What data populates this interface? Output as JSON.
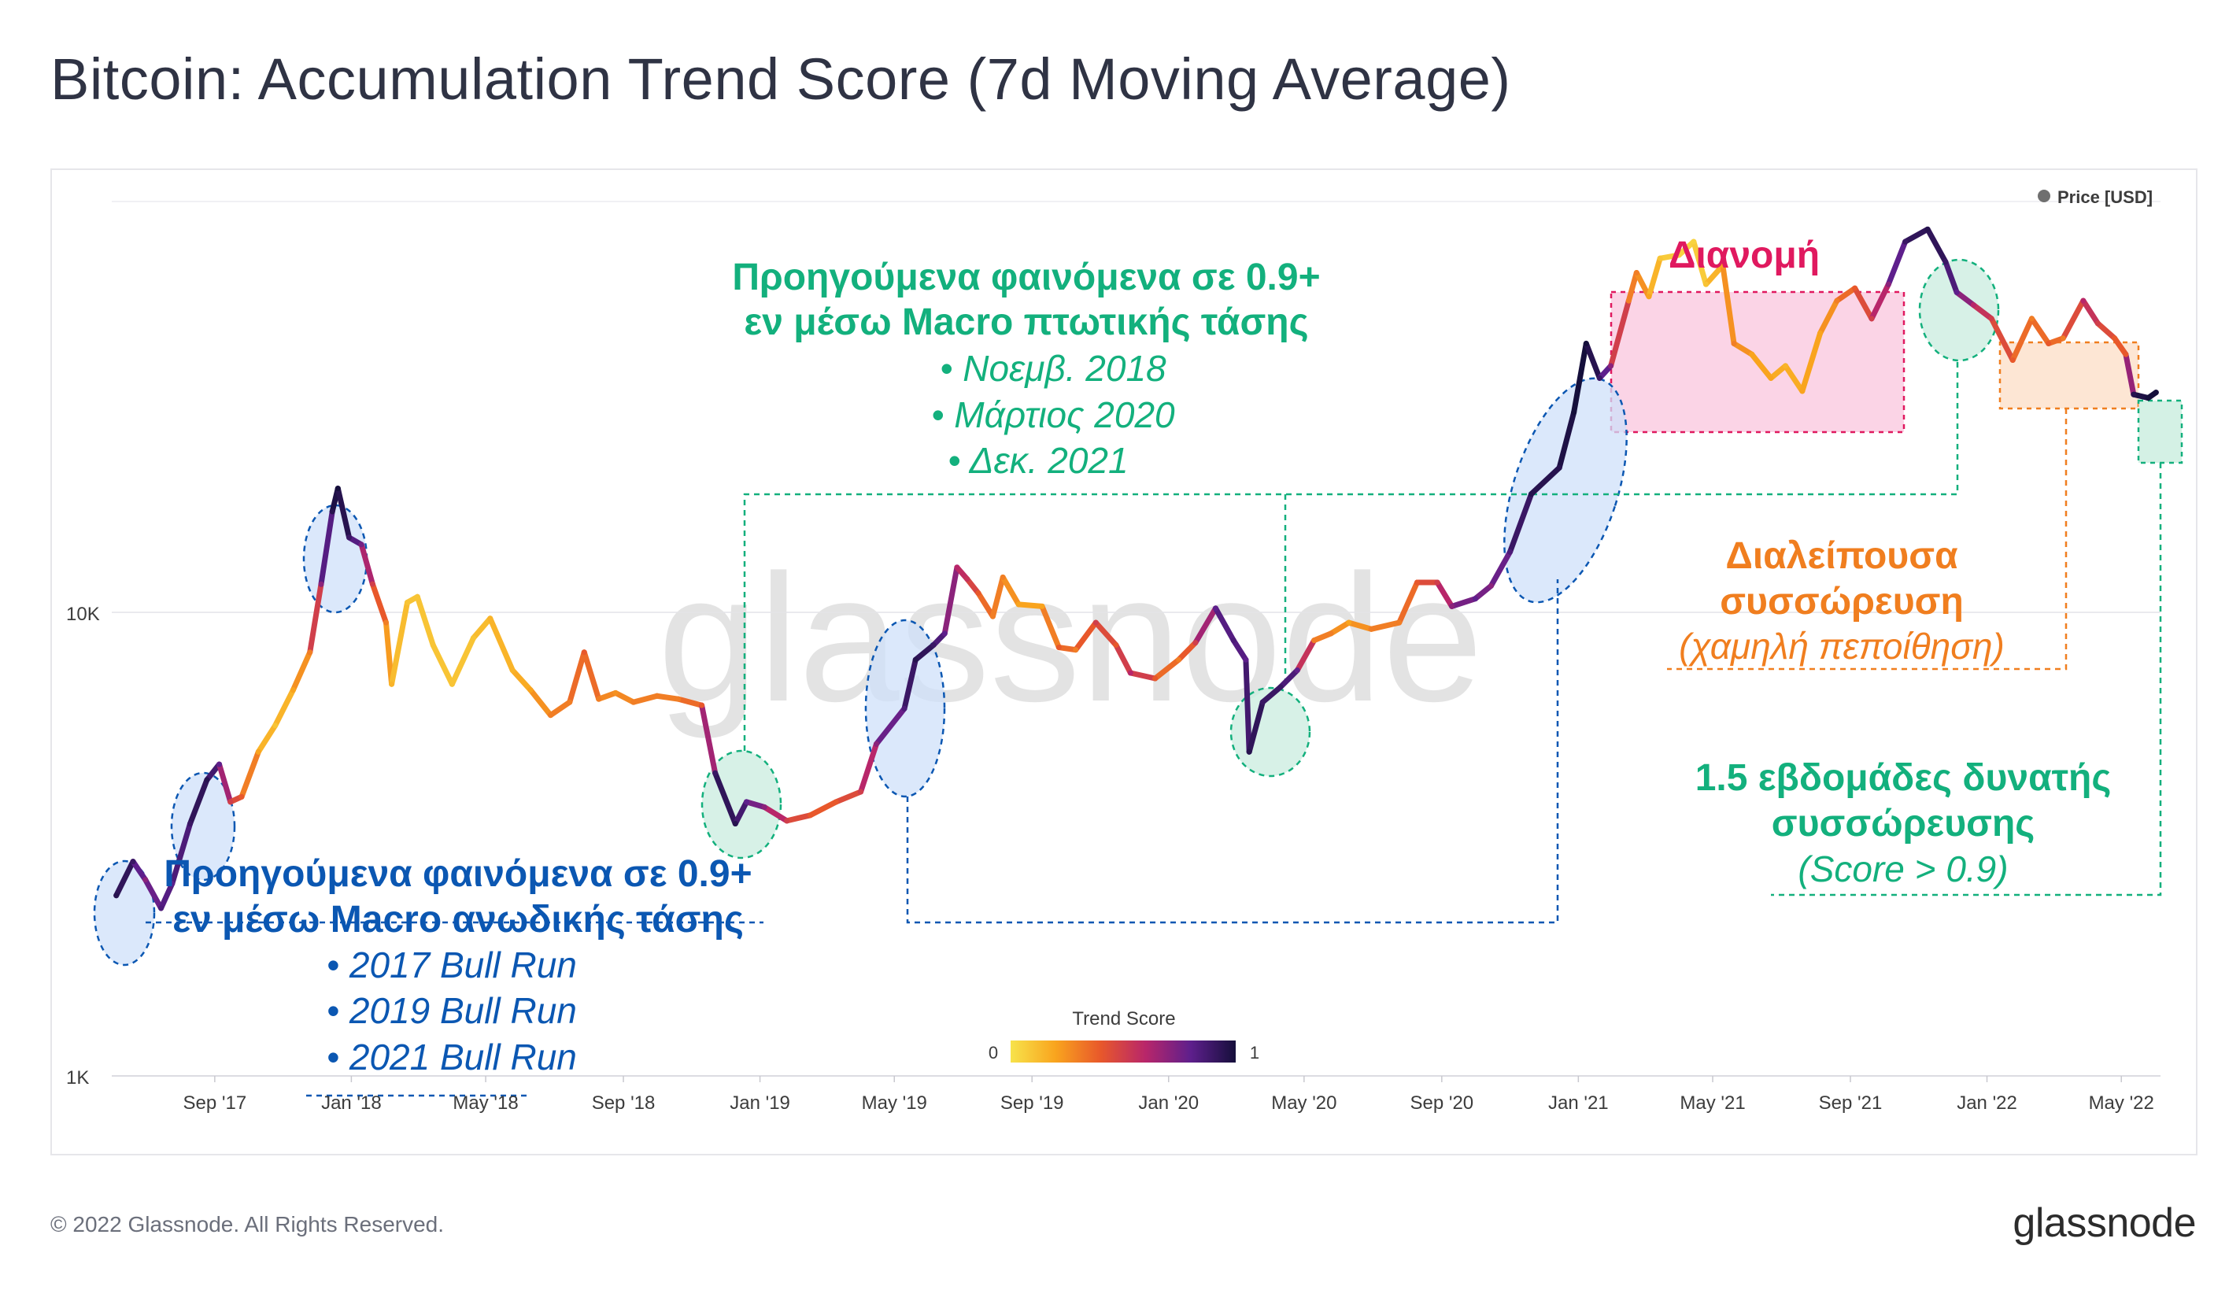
{
  "title": "Bitcoin: Accumulation Trend Score (7d Moving Average)",
  "footer": "© 2022 Glassnode. All Rights Reserved.",
  "brand": "glassnode",
  "watermark": "glassnode",
  "colors": {
    "green": "#13b07d",
    "blue": "#0b57b2",
    "orange": "#f07e1f",
    "pink": "#e0195f",
    "text": "#2f3344"
  },
  "chart_data": {
    "type": "line",
    "y_scale": "log",
    "legend": {
      "label": "Price [USD]",
      "position": "top-right"
    },
    "y_ticks": [
      {
        "value": 1000,
        "label": "1K"
      },
      {
        "value": 10000,
        "label": "10K"
      }
    ],
    "ylim": [
      1000,
      80000
    ],
    "x_range": [
      "2017-06-01",
      "2022-06-05"
    ],
    "x_ticks": [
      {
        "date": "2017-09-01",
        "label": "Sep '17"
      },
      {
        "date": "2018-01-01",
        "label": "Jan '18"
      },
      {
        "date": "2018-05-01",
        "label": "May '18"
      },
      {
        "date": "2018-09-01",
        "label": "Sep '18"
      },
      {
        "date": "2019-01-01",
        "label": "Jan '19"
      },
      {
        "date": "2019-05-01",
        "label": "May '19"
      },
      {
        "date": "2019-09-01",
        "label": "Sep '19"
      },
      {
        "date": "2020-01-01",
        "label": "Jan '20"
      },
      {
        "date": "2020-05-01",
        "label": "May '20"
      },
      {
        "date": "2020-09-01",
        "label": "Sep '20"
      },
      {
        "date": "2021-01-01",
        "label": "Jan '21"
      },
      {
        "date": "2021-05-01",
        "label": "May '21"
      },
      {
        "date": "2021-09-01",
        "label": "Sep '21"
      },
      {
        "date": "2022-01-01",
        "label": "Jan '22"
      },
      {
        "date": "2022-05-01",
        "label": "May '22"
      }
    ],
    "colorbar": {
      "title": "Trend Score",
      "min_label": "0",
      "max_label": "1",
      "stops": [
        "#f7e34b",
        "#f9a41e",
        "#e8582b",
        "#b8266a",
        "#5e1f8c",
        "#150f3b"
      ]
    },
    "series": [
      {
        "points": [
          {
            "x": "2017-06-05",
            "y": 2450,
            "s": 0.95
          },
          {
            "x": "2017-06-20",
            "y": 2900,
            "s": 0.9
          },
          {
            "x": "2017-07-01",
            "y": 2650,
            "s": 0.7
          },
          {
            "x": "2017-07-15",
            "y": 2300,
            "s": 0.85
          },
          {
            "x": "2017-07-25",
            "y": 2600,
            "s": 0.8
          },
          {
            "x": "2017-08-10",
            "y": 3500,
            "s": 0.9
          },
          {
            "x": "2017-08-25",
            "y": 4350,
            "s": 0.95
          },
          {
            "x": "2017-09-05",
            "y": 4700,
            "s": 0.8
          },
          {
            "x": "2017-09-15",
            "y": 3900,
            "s": 0.5
          },
          {
            "x": "2017-09-25",
            "y": 4000,
            "s": 0.4
          },
          {
            "x": "2017-10-10",
            "y": 5000,
            "s": 0.2
          },
          {
            "x": "2017-10-25",
            "y": 5700,
            "s": 0.1
          },
          {
            "x": "2017-11-10",
            "y": 6800,
            "s": 0.2
          },
          {
            "x": "2017-11-25",
            "y": 8200,
            "s": 0.3
          },
          {
            "x": "2017-12-05",
            "y": 11500,
            "s": 0.7
          },
          {
            "x": "2017-12-15",
            "y": 16500,
            "s": 0.95
          },
          {
            "x": "2017-12-20",
            "y": 18500,
            "s": 1.0
          },
          {
            "x": "2017-12-30",
            "y": 14500,
            "s": 0.9
          },
          {
            "x": "2018-01-10",
            "y": 14000,
            "s": 0.75
          },
          {
            "x": "2018-01-20",
            "y": 11500,
            "s": 0.5
          },
          {
            "x": "2018-02-01",
            "y": 9500,
            "s": 0.3
          },
          {
            "x": "2018-02-06",
            "y": 7000,
            "s": 0.15
          },
          {
            "x": "2018-02-20",
            "y": 10500,
            "s": 0.1
          },
          {
            "x": "2018-03-01",
            "y": 10800,
            "s": 0.1
          },
          {
            "x": "2018-03-15",
            "y": 8500,
            "s": 0.1
          },
          {
            "x": "2018-04-01",
            "y": 7000,
            "s": 0.1
          },
          {
            "x": "2018-04-20",
            "y": 8800,
            "s": 0.1
          },
          {
            "x": "2018-05-05",
            "y": 9700,
            "s": 0.15
          },
          {
            "x": "2018-05-25",
            "y": 7500,
            "s": 0.15
          },
          {
            "x": "2018-06-10",
            "y": 6800,
            "s": 0.2
          },
          {
            "x": "2018-06-28",
            "y": 6000,
            "s": 0.3
          },
          {
            "x": "2018-07-15",
            "y": 6400,
            "s": 0.3
          },
          {
            "x": "2018-07-28",
            "y": 8200,
            "s": 0.4
          },
          {
            "x": "2018-08-10",
            "y": 6500,
            "s": 0.3
          },
          {
            "x": "2018-08-25",
            "y": 6700,
            "s": 0.25
          },
          {
            "x": "2018-09-10",
            "y": 6400,
            "s": 0.3
          },
          {
            "x": "2018-10-01",
            "y": 6600,
            "s": 0.3
          },
          {
            "x": "2018-10-20",
            "y": 6500,
            "s": 0.3
          },
          {
            "x": "2018-11-10",
            "y": 6300,
            "s": 0.4
          },
          {
            "x": "2018-11-22",
            "y": 4500,
            "s": 0.9
          },
          {
            "x": "2018-12-10",
            "y": 3500,
            "s": 0.95
          },
          {
            "x": "2018-12-20",
            "y": 3900,
            "s": 0.8
          },
          {
            "x": "2019-01-05",
            "y": 3800,
            "s": 0.7
          },
          {
            "x": "2019-01-25",
            "y": 3550,
            "s": 0.5
          },
          {
            "x": "2019-02-15",
            "y": 3650,
            "s": 0.4
          },
          {
            "x": "2019-03-10",
            "y": 3900,
            "s": 0.4
          },
          {
            "x": "2019-04-01",
            "y": 4100,
            "s": 0.5
          },
          {
            "x": "2019-04-15",
            "y": 5200,
            "s": 0.7
          },
          {
            "x": "2019-05-10",
            "y": 6200,
            "s": 0.85
          },
          {
            "x": "2019-05-20",
            "y": 7900,
            "s": 0.95
          },
          {
            "x": "2019-06-05",
            "y": 8500,
            "s": 0.9
          },
          {
            "x": "2019-06-15",
            "y": 9000,
            "s": 0.8
          },
          {
            "x": "2019-06-26",
            "y": 12500,
            "s": 0.6
          },
          {
            "x": "2019-07-05",
            "y": 11800,
            "s": 0.55
          },
          {
            "x": "2019-07-15",
            "y": 11000,
            "s": 0.4
          },
          {
            "x": "2019-07-28",
            "y": 9800,
            "s": 0.3
          },
          {
            "x": "2019-08-06",
            "y": 11900,
            "s": 0.3
          },
          {
            "x": "2019-08-20",
            "y": 10400,
            "s": 0.2
          },
          {
            "x": "2019-09-10",
            "y": 10300,
            "s": 0.2
          },
          {
            "x": "2019-09-25",
            "y": 8400,
            "s": 0.4
          },
          {
            "x": "2019-10-10",
            "y": 8300,
            "s": 0.3
          },
          {
            "x": "2019-10-28",
            "y": 9500,
            "s": 0.5
          },
          {
            "x": "2019-11-15",
            "y": 8500,
            "s": 0.4
          },
          {
            "x": "2019-11-28",
            "y": 7400,
            "s": 0.6
          },
          {
            "x": "2019-12-20",
            "y": 7200,
            "s": 0.4
          },
          {
            "x": "2020-01-10",
            "y": 7900,
            "s": 0.3
          },
          {
            "x": "2020-01-25",
            "y": 8600,
            "s": 0.5
          },
          {
            "x": "2020-02-12",
            "y": 10200,
            "s": 0.8
          },
          {
            "x": "2020-02-28",
            "y": 8700,
            "s": 0.85
          },
          {
            "x": "2020-03-10",
            "y": 7900,
            "s": 0.8
          },
          {
            "x": "2020-03-13",
            "y": 5000,
            "s": 0.95
          },
          {
            "x": "2020-03-25",
            "y": 6400,
            "s": 0.9
          },
          {
            "x": "2020-04-10",
            "y": 6900,
            "s": 0.9
          },
          {
            "x": "2020-04-25",
            "y": 7500,
            "s": 0.8
          },
          {
            "x": "2020-05-10",
            "y": 8700,
            "s": 0.3
          },
          {
            "x": "2020-05-25",
            "y": 9000,
            "s": 0.3
          },
          {
            "x": "2020-06-10",
            "y": 9500,
            "s": 0.2
          },
          {
            "x": "2020-06-30",
            "y": 9200,
            "s": 0.3
          },
          {
            "x": "2020-07-25",
            "y": 9500,
            "s": 0.3
          },
          {
            "x": "2020-08-10",
            "y": 11600,
            "s": 0.4
          },
          {
            "x": "2020-08-28",
            "y": 11600,
            "s": 0.5
          },
          {
            "x": "2020-09-10",
            "y": 10300,
            "s": 0.7
          },
          {
            "x": "2020-10-01",
            "y": 10700,
            "s": 0.8
          },
          {
            "x": "2020-10-15",
            "y": 11400,
            "s": 0.7
          },
          {
            "x": "2020-11-01",
            "y": 13500,
            "s": 0.85
          },
          {
            "x": "2020-11-20",
            "y": 18000,
            "s": 0.95
          },
          {
            "x": "2020-12-15",
            "y": 20500,
            "s": 0.95
          },
          {
            "x": "2020-12-28",
            "y": 27000,
            "s": 1.0
          },
          {
            "x": "2021-01-08",
            "y": 38000,
            "s": 1.0
          },
          {
            "x": "2021-01-20",
            "y": 32000,
            "s": 0.9
          },
          {
            "x": "2021-01-30",
            "y": 34000,
            "s": 0.7
          },
          {
            "x": "2021-02-15",
            "y": 47000,
            "s": 0.3
          },
          {
            "x": "2021-02-22",
            "y": 54000,
            "s": 0.3
          },
          {
            "x": "2021-03-05",
            "y": 48000,
            "s": 0.2
          },
          {
            "x": "2021-03-15",
            "y": 58000,
            "s": 0.1
          },
          {
            "x": "2021-04-01",
            "y": 59000,
            "s": 0.05
          },
          {
            "x": "2021-04-14",
            "y": 63000,
            "s": 0.05
          },
          {
            "x": "2021-04-25",
            "y": 51000,
            "s": 0.1
          },
          {
            "x": "2021-05-10",
            "y": 56000,
            "s": 0.2
          },
          {
            "x": "2021-05-20",
            "y": 38000,
            "s": 0.3
          },
          {
            "x": "2021-06-05",
            "y": 36000,
            "s": 0.2
          },
          {
            "x": "2021-06-22",
            "y": 32000,
            "s": 0.2
          },
          {
            "x": "2021-07-05",
            "y": 34000,
            "s": 0.15
          },
          {
            "x": "2021-07-20",
            "y": 30000,
            "s": 0.2
          },
          {
            "x": "2021-08-05",
            "y": 40000,
            "s": 0.2
          },
          {
            "x": "2021-08-20",
            "y": 47000,
            "s": 0.3
          },
          {
            "x": "2021-09-05",
            "y": 50000,
            "s": 0.4
          },
          {
            "x": "2021-09-20",
            "y": 43000,
            "s": 0.5
          },
          {
            "x": "2021-10-05",
            "y": 51000,
            "s": 0.7
          },
          {
            "x": "2021-10-20",
            "y": 63000,
            "s": 0.9
          },
          {
            "x": "2021-11-09",
            "y": 67000,
            "s": 0.95
          },
          {
            "x": "2021-11-25",
            "y": 57000,
            "s": 0.9
          },
          {
            "x": "2021-12-05",
            "y": 49000,
            "s": 0.8
          },
          {
            "x": "2021-12-20",
            "y": 46000,
            "s": 0.6
          },
          {
            "x": "2022-01-05",
            "y": 43000,
            "s": 0.5
          },
          {
            "x": "2022-01-24",
            "y": 35000,
            "s": 0.4
          },
          {
            "x": "2022-02-10",
            "y": 43000,
            "s": 0.3
          },
          {
            "x": "2022-02-25",
            "y": 38000,
            "s": 0.4
          },
          {
            "x": "2022-03-10",
            "y": 39000,
            "s": 0.3
          },
          {
            "x": "2022-03-28",
            "y": 47000,
            "s": 0.6
          },
          {
            "x": "2022-04-10",
            "y": 42000,
            "s": 0.5
          },
          {
            "x": "2022-04-25",
            "y": 39000,
            "s": 0.4
          },
          {
            "x": "2022-05-05",
            "y": 36000,
            "s": 0.4
          },
          {
            "x": "2022-05-12",
            "y": 29500,
            "s": 0.95
          },
          {
            "x": "2022-05-25",
            "y": 29000,
            "s": 1.0
          },
          {
            "x": "2022-06-01",
            "y": 29800,
            "s": 1.0
          }
        ]
      }
    ],
    "annotations": {
      "bear_heading_line1": "Προηγούμενα φαινόμενα σε 0.9+",
      "bear_heading_line2": "εν μέσω Macro πτωτικής τάσης",
      "bear_item1": "•  Νοεμβ. 2018",
      "bear_item2": "•  Μάρτιος 2020",
      "bear_item3": "•  Δεκ. 2021",
      "bull_heading_line1": "Προηγούμενα φαινόμενα σε 0.9+",
      "bull_heading_line2": "εν μέσω Macro ανωδικής τάσης",
      "bull_item1": "•  2017 Bull Run",
      "bull_item2": "•  2019 Bull Run",
      "bull_item3": "•  2021 Bull Run",
      "distribution": "Διανομή",
      "intermittent_line1": "Διαλείπουσα",
      "intermittent_line2": "συσσώρευση",
      "intermittent_line3": "(χαμηλή πεποίθηση)",
      "strong_line1": "1.5 εβδομάδες δυνατής",
      "strong_line2": "συσσώρευσης",
      "strong_line3": "(Score > 0.9)"
    }
  }
}
